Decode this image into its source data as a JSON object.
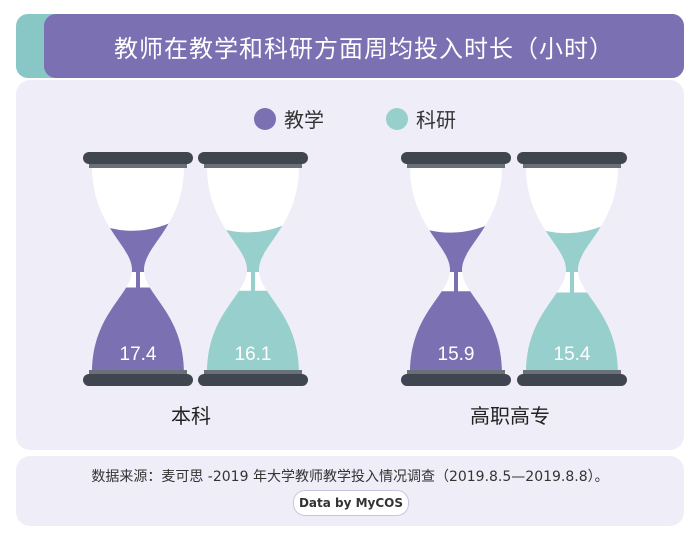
{
  "title": "教师在教学和科研方面周均投入时长（小时）",
  "source_text": "数据来源：麦可思 -2019 年大学教师教学投入情况调查（2019.8.5—2019.8.8）。",
  "brand_text": "Data by MyCOS",
  "colors": {
    "teaching": "#7b70b2",
    "research": "#96cfcb",
    "frame": "#3f4650"
  },
  "chart_data": {
    "type": "bar",
    "title": "教师在教学和科研方面周均投入时长（小时）",
    "categories": [
      "本科",
      "高职高专"
    ],
    "series": [
      {
        "name": "教学",
        "values": [
          17.4,
          15.9
        ]
      },
      {
        "name": "科研",
        "values": [
          16.1,
          15.4
        ]
      }
    ],
    "value_labels": [
      [
        "17.4",
        "16.1"
      ],
      [
        "15.9",
        "15.4"
      ]
    ],
    "legend_position": "top-center",
    "grid": false
  }
}
